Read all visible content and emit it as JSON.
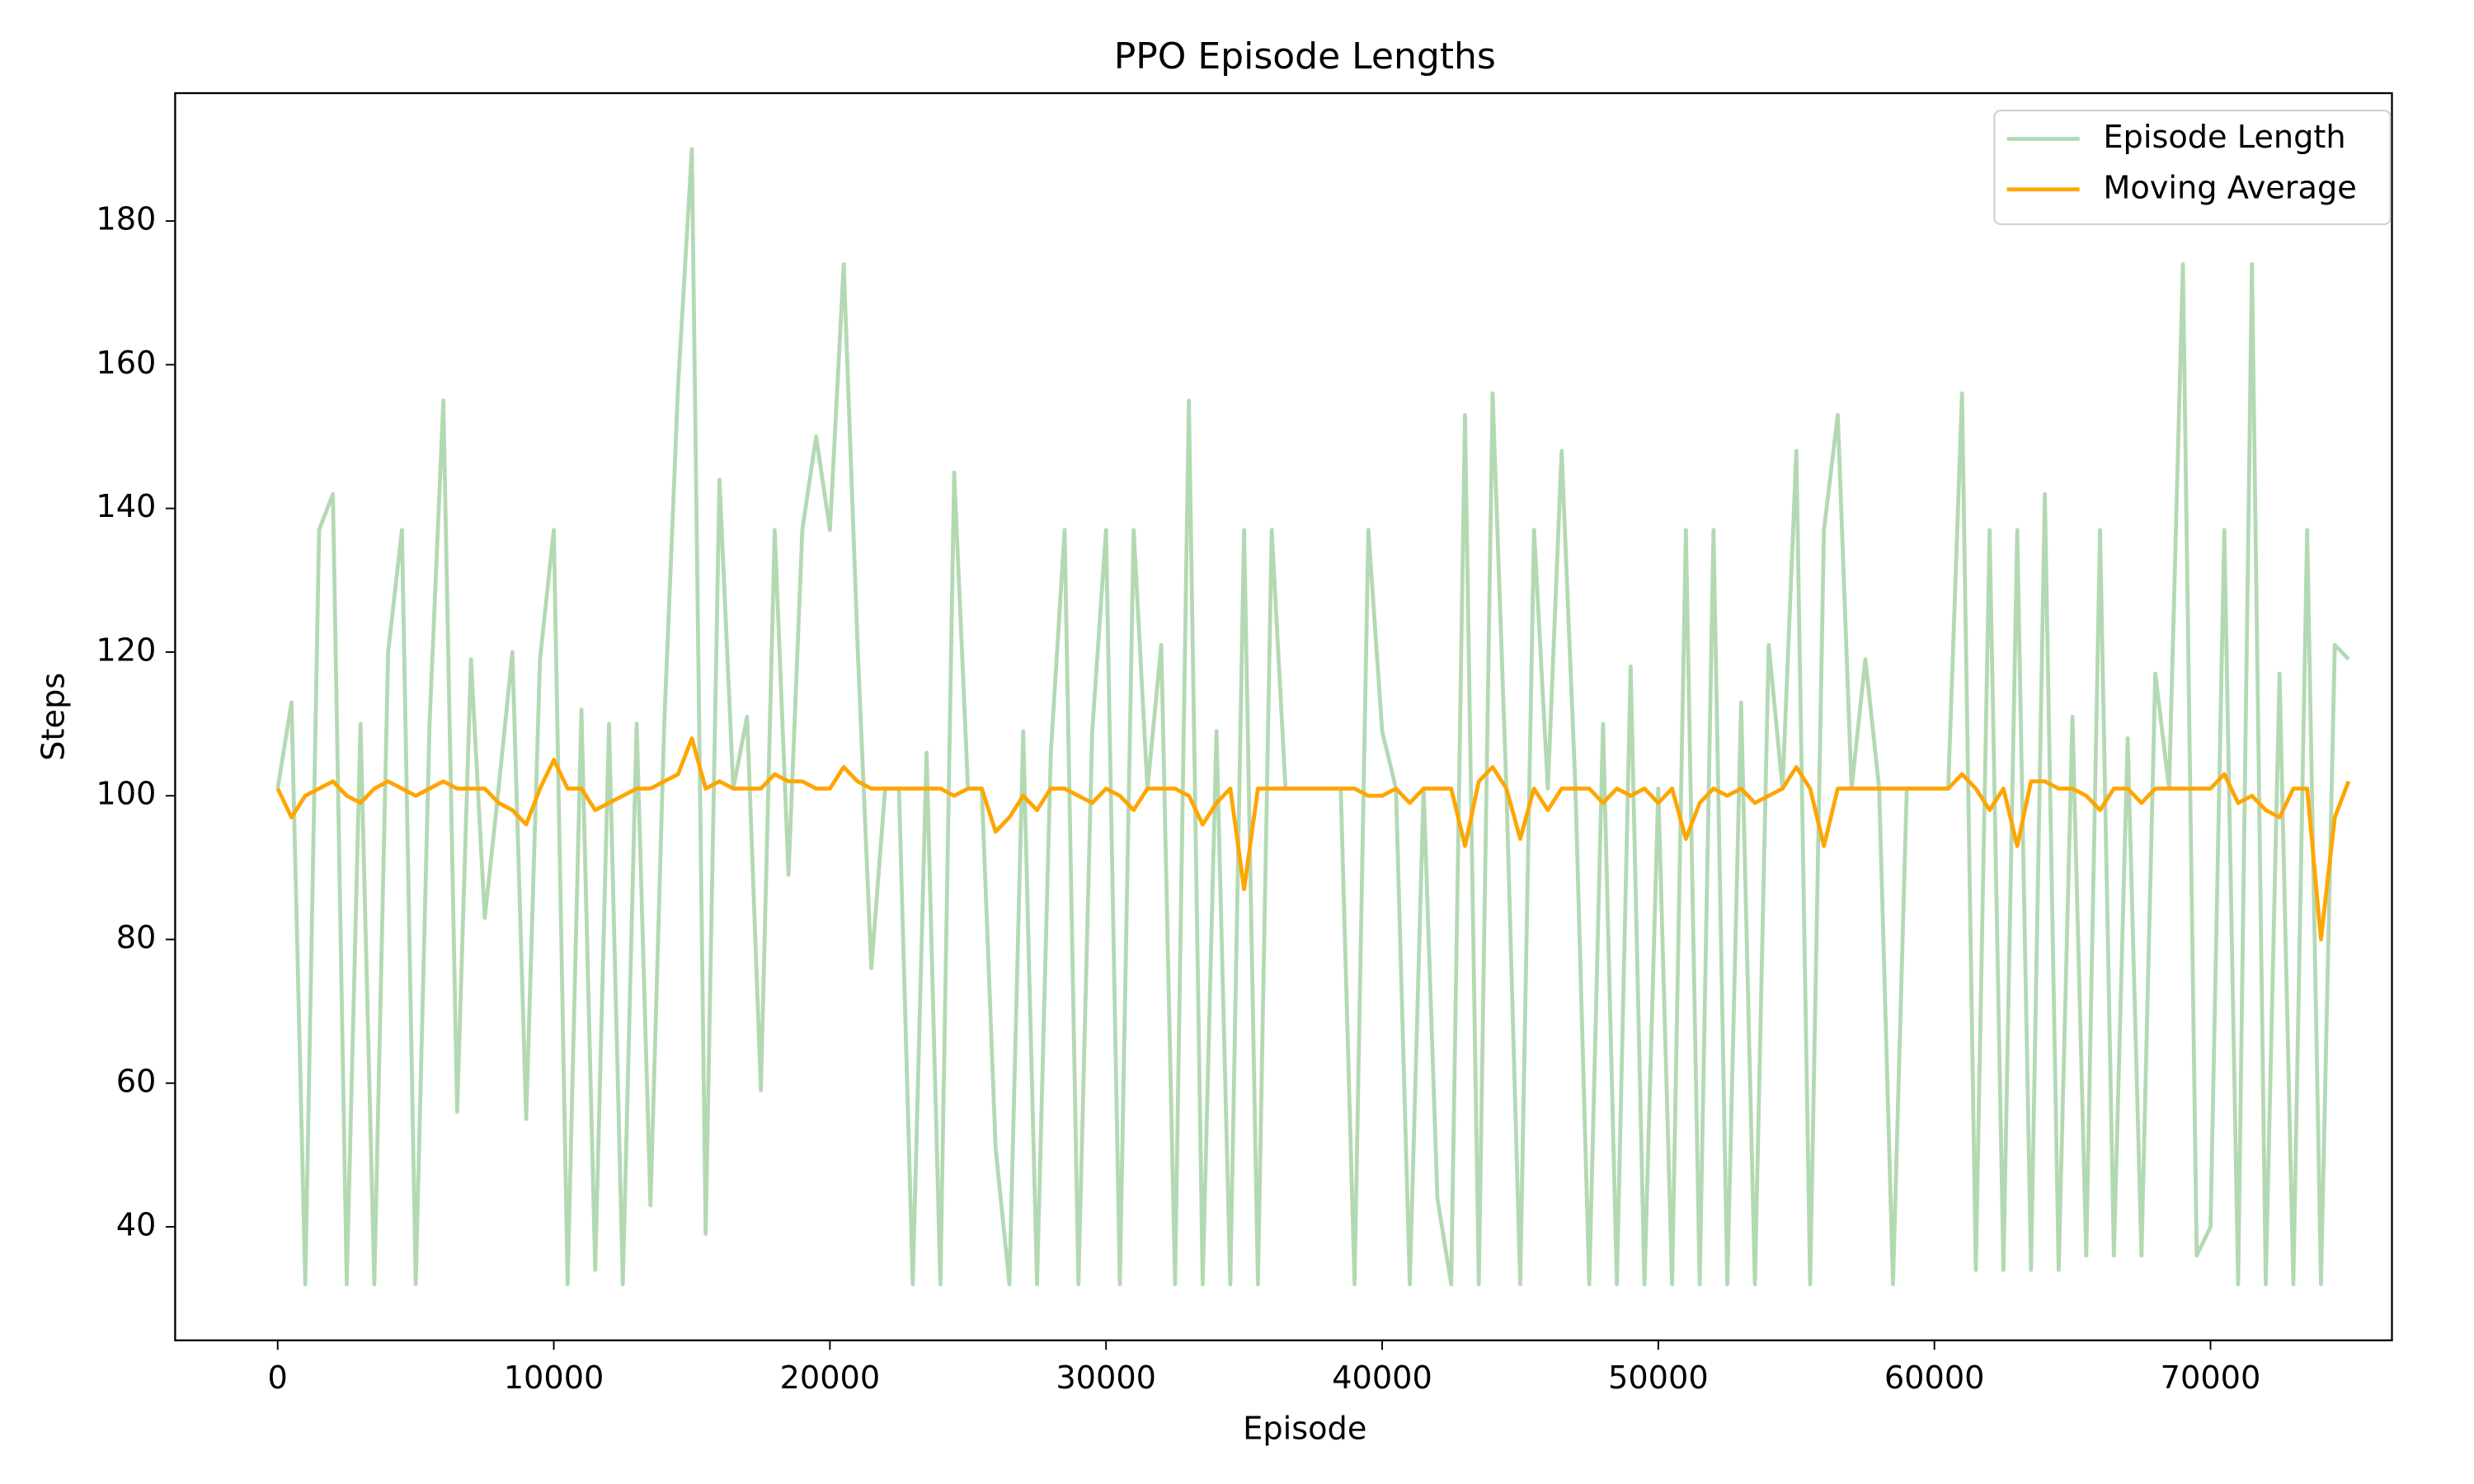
{
  "chart_data": {
    "type": "line",
    "title": "PPO Episode Lengths",
    "x_label": "Episode",
    "y_label": "Steps",
    "x": [
      0,
      500,
      1000,
      1500,
      2000,
      2500,
      3000,
      3500,
      4000,
      4500,
      5000,
      5500,
      6000,
      6500,
      7000,
      7500,
      8000,
      8500,
      9000,
      9500,
      10000,
      10500,
      11000,
      11500,
      12000,
      12500,
      13000,
      13500,
      14000,
      14500,
      15000,
      15500,
      16000,
      16500,
      17000,
      17500,
      18000,
      18500,
      19000,
      19500,
      20000,
      20500,
      21000,
      21500,
      22000,
      22500,
      23000,
      23500,
      24000,
      24500,
      25000,
      25500,
      26000,
      26500,
      27000,
      27500,
      28000,
      28500,
      29000,
      29500,
      30000,
      30500,
      31000,
      31500,
      32000,
      32500,
      33000,
      33500,
      34000,
      34500,
      35000,
      35500,
      36000,
      36500,
      37000,
      37500,
      38000,
      38500,
      39000,
      39500,
      40000,
      40500,
      41000,
      41500,
      42000,
      42500,
      43000,
      43500,
      44000,
      44500,
      45000,
      45500,
      46000,
      46500,
      47000,
      47500,
      48000,
      48500,
      49000,
      49500,
      50000,
      50500,
      51000,
      51500,
      52000,
      52500,
      53000,
      53500,
      54000,
      54500,
      55000,
      55500,
      56000,
      56500,
      57000,
      57500,
      58000,
      58500,
      59000,
      59500,
      60000,
      60500,
      61000,
      61500,
      62000,
      62500,
      63000,
      63500,
      64000,
      64500,
      65000,
      65500,
      66000,
      66500,
      67000,
      67500,
      68000,
      68500,
      69000,
      69500,
      70000,
      70500,
      71000,
      71500,
      72000,
      72500,
      73000,
      73500,
      74000,
      74500,
      75000
    ],
    "series": [
      {
        "name": "Episode Length",
        "color": "#b3d9b3",
        "values": [
          101,
          113,
          32,
          137,
          142,
          32,
          110,
          32,
          120,
          137,
          32,
          110,
          155,
          56,
          119,
          83,
          101,
          120,
          55,
          119,
          137,
          32,
          112,
          34,
          110,
          32,
          110,
          43,
          110,
          157,
          190,
          39,
          144,
          101,
          111,
          59,
          137,
          89,
          137,
          150,
          137,
          174,
          121,
          76,
          101,
          101,
          32,
          106,
          32,
          145,
          101,
          101,
          51,
          32,
          109,
          32,
          106,
          137,
          32,
          109,
          137,
          32,
          137,
          101,
          121,
          32,
          155,
          32,
          109,
          32,
          137,
          32,
          137,
          101,
          101,
          101,
          101,
          101,
          32,
          137,
          109,
          101,
          32,
          101,
          44,
          32,
          153,
          32,
          156,
          101,
          32,
          137,
          101,
          148,
          101,
          32,
          110,
          32,
          118,
          32,
          101,
          32,
          137,
          32,
          137,
          32,
          113,
          32,
          121,
          101,
          148,
          32,
          137,
          153,
          101,
          119,
          101,
          32,
          101,
          101,
          101,
          101,
          156,
          34,
          137,
          34,
          137,
          34,
          142,
          34,
          111,
          36,
          137,
          36,
          108,
          36,
          117,
          101,
          174,
          36,
          40,
          137,
          32,
          174,
          32,
          117,
          32,
          137,
          32,
          121,
          119
        ]
      },
      {
        "name": "Moving Average",
        "color": "#ffa500",
        "values": [
          101,
          97,
          100,
          101,
          102,
          100,
          99,
          101,
          102,
          101,
          100,
          101,
          102,
          101,
          101,
          101,
          99,
          98,
          96,
          101,
          105,
          101,
          101,
          98,
          99,
          100,
          101,
          101,
          102,
          103,
          108,
          101,
          102,
          101,
          101,
          101,
          103,
          102,
          102,
          101,
          101,
          104,
          102,
          101,
          101,
          101,
          101,
          101,
          101,
          100,
          101,
          101,
          95,
          97,
          100,
          98,
          101,
          101,
          100,
          99,
          101,
          100,
          98,
          101,
          101,
          101,
          100,
          96,
          99,
          101,
          87,
          101,
          101,
          101,
          101,
          101,
          101,
          101,
          101,
          100,
          100,
          101,
          99,
          101,
          101,
          101,
          93,
          102,
          104,
          101,
          94,
          101,
          98,
          101,
          101,
          101,
          99,
          101,
          100,
          101,
          99,
          101,
          94,
          99,
          101,
          100,
          101,
          99,
          100,
          101,
          104,
          101,
          93,
          101,
          101,
          101,
          101,
          101,
          101,
          101,
          101,
          101,
          103,
          101,
          98,
          101,
          93,
          102,
          102,
          101,
          101,
          100,
          98,
          101,
          101,
          99,
          101,
          101,
          101,
          101,
          101,
          103,
          99,
          100,
          98,
          97,
          101,
          101,
          80,
          97,
          102
        ]
      }
    ],
    "xlim": [
      -3714,
      76571
    ],
    "ylim": [
      24.2,
      197.8
    ],
    "xticks": [
      0,
      10000,
      20000,
      30000,
      40000,
      50000,
      60000,
      70000
    ],
    "yticks": [
      40,
      60,
      80,
      100,
      120,
      140,
      160,
      180
    ],
    "legend": "upper right"
  }
}
